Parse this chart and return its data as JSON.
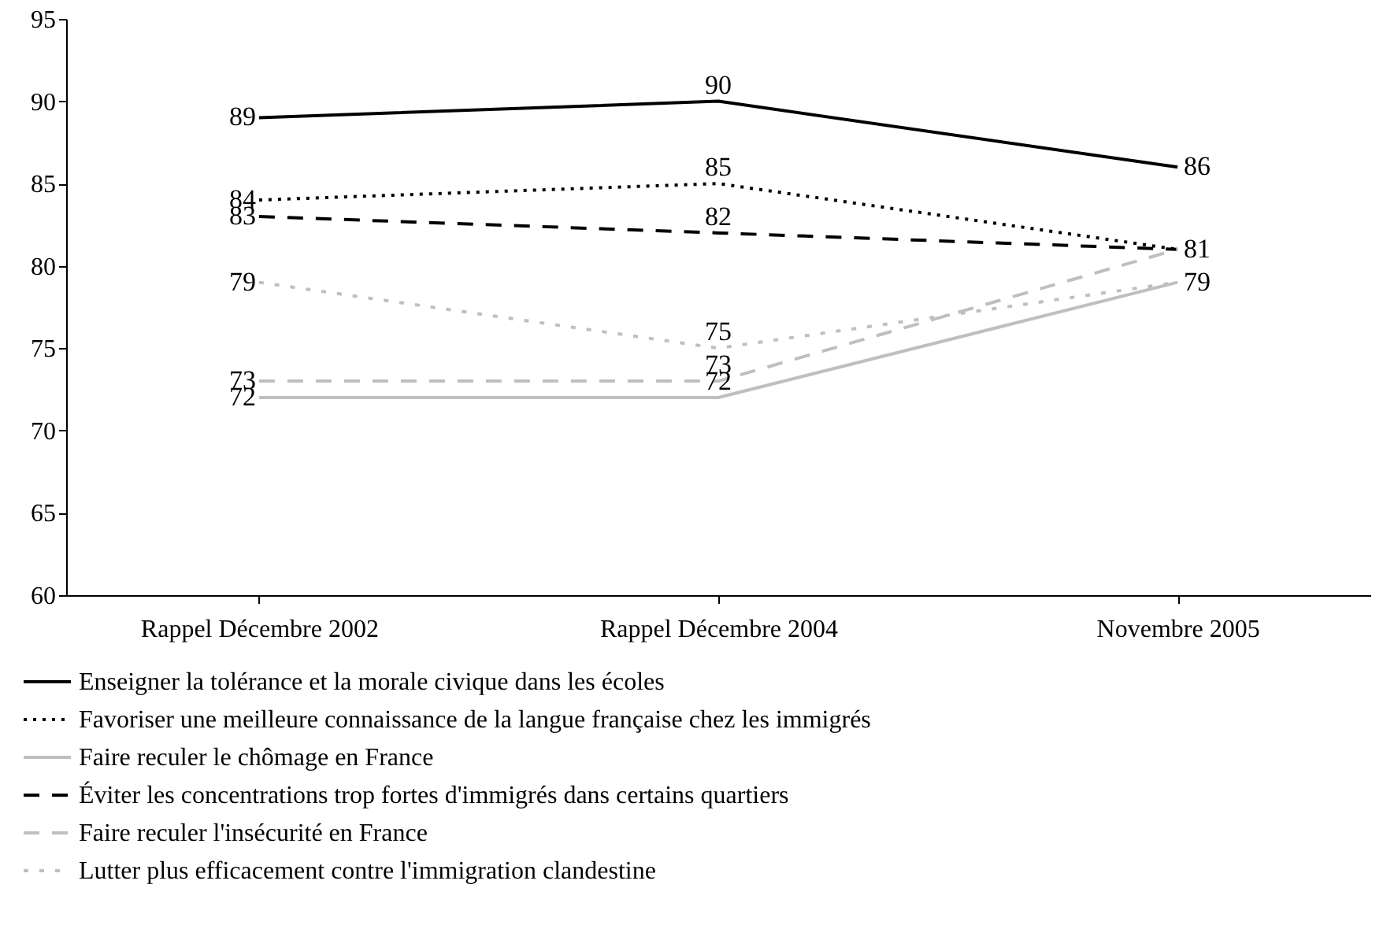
{
  "chart_data": {
    "type": "line",
    "categories": [
      "Rappel Décembre 2002",
      "Rappel Décembre 2004",
      "Novembre 2005"
    ],
    "ylim": [
      60,
      95
    ],
    "yticks": [
      60,
      65,
      70,
      75,
      80,
      85,
      90,
      95
    ],
    "grid": false,
    "legend": "bottom",
    "marker": "none",
    "series": [
      {
        "name": "Enseigner la tolérance et la morale civique dans les écoles",
        "color": "#000000",
        "line_style": "solid",
        "values": [
          89,
          90,
          86
        ],
        "value_labels": [
          "89",
          "90",
          "86"
        ]
      },
      {
        "name": "Favoriser une meilleure connaissance de la langue française chez les immigrés",
        "color": "#000000",
        "line_style": "dotted",
        "values": [
          84,
          85,
          81
        ],
        "value_labels": [
          "84",
          "85",
          "81"
        ]
      },
      {
        "name": "Faire reculer le chômage en France",
        "color": "#bfbfbf",
        "line_style": "solid",
        "values": [
          72,
          72,
          79
        ],
        "value_labels": [
          "72",
          "72",
          "79"
        ]
      },
      {
        "name": "Éviter les concentrations trop fortes d'immigrés dans certains quartiers",
        "color": "#000000",
        "line_style": "dashed",
        "values": [
          83,
          82,
          81
        ],
        "value_labels": [
          "83",
          "82",
          null
        ]
      },
      {
        "name": "Faire reculer l'insécurité en France",
        "color": "#bfbfbf",
        "line_style": "dashed",
        "values": [
          73,
          73,
          81
        ],
        "value_labels": [
          "73",
          "73",
          null
        ]
      },
      {
        "name": "Lutter plus efficacement contre l'immigration clandestine",
        "color": "#bfbfbf",
        "line_style": "dotted",
        "values": [
          79,
          75,
          79
        ],
        "value_labels": [
          "79",
          "75",
          null
        ]
      }
    ]
  }
}
